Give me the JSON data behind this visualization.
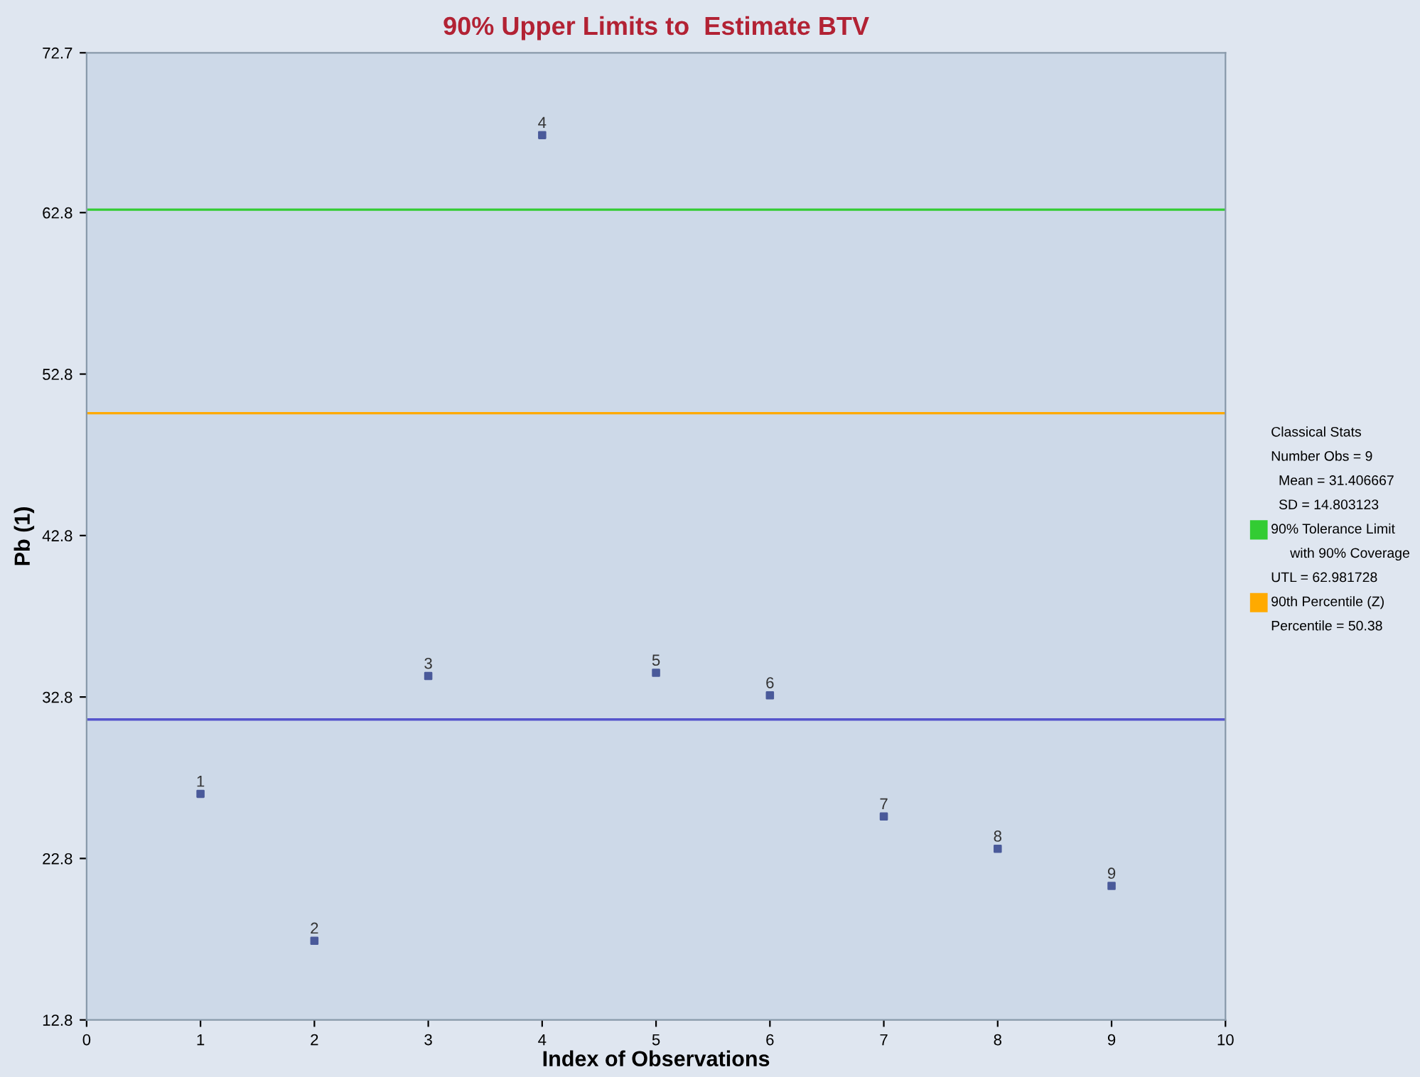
{
  "chart_data": {
    "type": "scatter",
    "title": "90% Upper Limits to  Estimate BTV",
    "xlabel": "Index of Observations",
    "ylabel": "Pb (1)",
    "x": [
      1,
      2,
      3,
      4,
      5,
      6,
      7,
      8,
      9
    ],
    "series": [
      {
        "color": "#4a5a9a",
        "values": [
          26.8,
          17.7,
          34.1,
          67.6,
          34.3,
          32.9,
          25.4,
          23.4,
          21.1
        ]
      }
    ],
    "legend": "right",
    "marker": "square",
    "xlim": [
      0,
      10
    ],
    "xticks": [
      0,
      1,
      2,
      3,
      4,
      5,
      6,
      7,
      8,
      9,
      10
    ],
    "ylim": [
      12.8,
      72.7
    ],
    "yticks": [
      12.8,
      22.8,
      32.8,
      42.8,
      52.8,
      62.8,
      72.7
    ],
    "grid": false,
    "ref_lines": [
      {
        "axis": "y",
        "value": 62.981728,
        "label": "90% Tolerance Limit\n     with 90% Coverage",
        "color": "#33cc33"
      },
      {
        "axis": "y",
        "value": 50.38,
        "label": "90th Percentile (Z)",
        "color": "#ffaa00"
      },
      {
        "axis": "y",
        "value": 31.406667,
        "color": "#5555cc"
      }
    ],
    "annotations": [
      "Classical Stats",
      "Number Obs = 9",
      "  Mean = 31.406667",
      "  SD = 14.803123",
      "UTL = 62.981728",
      "Percentile = 50.38",
      {
        "text": "1",
        "x": 1,
        "y": 26.8
      },
      {
        "text": "2",
        "x": 2,
        "y": 17.7
      },
      {
        "text": "3",
        "x": 3,
        "y": 34.1
      },
      {
        "text": "4",
        "x": 4,
        "y": 67.6
      },
      {
        "text": "5",
        "x": 5,
        "y": 34.3
      },
      {
        "text": "6",
        "x": 6,
        "y": 32.9
      },
      {
        "text": "7",
        "x": 7,
        "y": 25.4
      },
      {
        "text": "8",
        "x": 8,
        "y": 23.4
      },
      {
        "text": "9",
        "x": 9,
        "y": 21.1
      }
    ]
  }
}
